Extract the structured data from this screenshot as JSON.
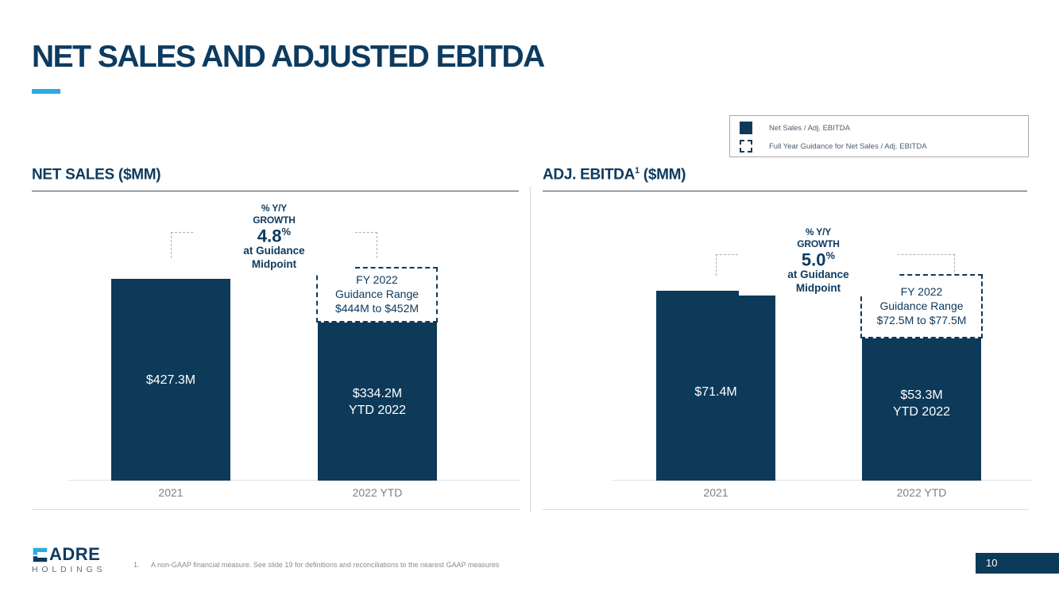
{
  "slide": {
    "title": "NET SALES AND ADJUSTED EBITDA",
    "page_number": "10"
  },
  "colors": {
    "navy": "#0e3a5a",
    "title_navy": "#0d3b60",
    "accent_blue": "#29abe2",
    "bracket_gray": "#aeaeae",
    "axis_label_gray": "#7f7f7f"
  },
  "legend": {
    "items": [
      {
        "marker": "solid-square-icon",
        "label": "Net Sales / Adj. EBITDA"
      },
      {
        "marker": "dashed-square-icon",
        "label": "Full Year Guidance for Net Sales / Adj. EBITDA"
      }
    ]
  },
  "chart_data": [
    {
      "type": "bar",
      "title_main": "NET SALES",
      "title_sup": "",
      "title_unit": " ($MM)",
      "categories": [
        "2021",
        "2022 YTD"
      ],
      "values": [
        427.3,
        334.2
      ],
      "ylim": [
        0,
        460
      ],
      "grid": false,
      "bar_color": "#0e3a5a",
      "bar_labels": [
        {
          "line1": "$427.3M",
          "line2": ""
        },
        {
          "line1": "$334.2M",
          "line2": "YTD 2022"
        }
      ],
      "growth_annotation": {
        "line1": "% Y/Y",
        "line2": "GROWTH",
        "value": "4.8",
        "value_suffix": "%",
        "line3": "at Guidance",
        "line4": "Midpoint"
      },
      "guidance": {
        "line1": "FY 2022",
        "line2": "Guidance Range",
        "line3": "$444M to $452M",
        "low": 444,
        "high": 452
      }
    },
    {
      "type": "bar",
      "title_main": "ADJ. EBITDA",
      "title_sup": "1",
      "title_unit": " ($MM)",
      "categories": [
        "2021",
        "2022 YTD"
      ],
      "values": [
        71.4,
        53.3
      ],
      "ylim": [
        0,
        80
      ],
      "grid": false,
      "bar_color": "#0e3a5a",
      "bar_labels": [
        {
          "line1": "$71.4M",
          "line2": ""
        },
        {
          "line1": "$53.3M",
          "line2": "YTD 2022"
        }
      ],
      "growth_annotation": {
        "line1": "% Y/Y",
        "line2": "GROWTH",
        "value": "5.0",
        "value_suffix": "%",
        "line3": "at Guidance",
        "line4": "Midpoint"
      },
      "guidance": {
        "line1": "FY 2022",
        "line2": "Guidance Range",
        "line3": "$72.5M to $77.5M",
        "low": 72.5,
        "high": 77.5
      }
    }
  ],
  "footer": {
    "logo_name": "ADRE",
    "logo_sub": "HOLDINGS",
    "footnote_number": "1.",
    "footnote_text": "A non-GAAP financial measure. See slide 19 for definitions and reconciliations to the nearest GAAP measures"
  }
}
